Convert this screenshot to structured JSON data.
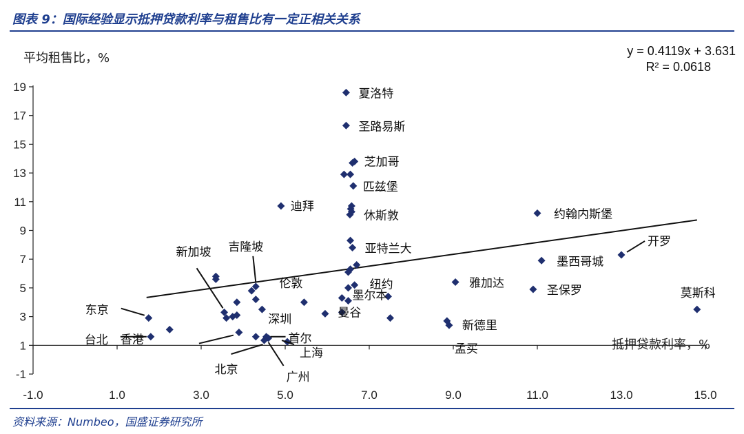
{
  "header": {
    "title": "图表 9：国际经验显示抵押贷款利率与租售比有一定正相关关系"
  },
  "footer": {
    "source": "资料来源：Numbeo，国盛证券研究所"
  },
  "chart_data": {
    "type": "scatter",
    "ylabel": "平均租售比，%",
    "xlabel": "抵押贷款利率，%",
    "xlim": [
      -1.0,
      15.0
    ],
    "ylim": [
      -1,
      19
    ],
    "x_ticks": [
      "-1.0",
      "1.0",
      "3.0",
      "5.0",
      "7.0",
      "9.0",
      "11.0",
      "13.0",
      "15.0"
    ],
    "y_ticks": [
      "-1",
      "1",
      "3",
      "5",
      "7",
      "9",
      "11",
      "13",
      "15",
      "17",
      "19"
    ],
    "marker_color": "#1f2f6f",
    "trendline": {
      "equation": "y = 0.4119x + 3.631",
      "r2": "R² = 0.0618",
      "slope": 0.4119,
      "intercept": 3.631,
      "x_range": [
        1.7,
        14.8
      ]
    },
    "points": [
      {
        "x": 6.45,
        "y": 18.6,
        "label": "夏洛特"
      },
      {
        "x": 6.45,
        "y": 16.3,
        "label": "圣路易斯"
      },
      {
        "x": 6.65,
        "y": 13.8,
        "label": "芝加哥"
      },
      {
        "x": 6.6,
        "y": 13.7
      },
      {
        "x": 6.4,
        "y": 12.9
      },
      {
        "x": 6.55,
        "y": 12.9
      },
      {
        "x": 6.62,
        "y": 12.1,
        "label": "匹兹堡"
      },
      {
        "x": 4.9,
        "y": 10.7,
        "label": "迪拜"
      },
      {
        "x": 6.58,
        "y": 10.7
      },
      {
        "x": 6.56,
        "y": 10.5
      },
      {
        "x": 6.58,
        "y": 10.3
      },
      {
        "x": 6.54,
        "y": 10.1,
        "label": "休斯敦"
      },
      {
        "x": 11.0,
        "y": 10.2,
        "label": "约翰内斯堡"
      },
      {
        "x": 6.55,
        "y": 8.3
      },
      {
        "x": 6.6,
        "y": 7.8,
        "label": "亚特兰大"
      },
      {
        "x": 13.0,
        "y": 7.3,
        "label": "开罗"
      },
      {
        "x": 11.1,
        "y": 6.9,
        "label": "墨西哥城"
      },
      {
        "x": 6.7,
        "y": 6.6
      },
      {
        "x": 6.55,
        "y": 6.3
      },
      {
        "x": 6.5,
        "y": 6.1
      },
      {
        "x": 9.05,
        "y": 5.4,
        "label": "雅加达"
      },
      {
        "x": 10.9,
        "y": 4.9,
        "label": "圣保罗"
      },
      {
        "x": 6.65,
        "y": 5.2,
        "label": "纽约"
      },
      {
        "x": 6.5,
        "y": 5.0
      },
      {
        "x": 3.35,
        "y": 5.8
      },
      {
        "x": 3.35,
        "y": 5.6
      },
      {
        "x": 4.3,
        "y": 5.1,
        "label": "吉隆坡"
      },
      {
        "x": 4.2,
        "y": 4.8
      },
      {
        "x": 4.3,
        "y": 4.2
      },
      {
        "x": 5.45,
        "y": 4.0,
        "label": "伦敦"
      },
      {
        "x": 3.85,
        "y": 4.0
      },
      {
        "x": 4.45,
        "y": 3.5
      },
      {
        "x": 6.35,
        "y": 4.3
      },
      {
        "x": 6.5,
        "y": 4.1
      },
      {
        "x": 7.45,
        "y": 4.4,
        "label": "墨尔本"
      },
      {
        "x": 3.55,
        "y": 3.3,
        "label": "新加坡"
      },
      {
        "x": 3.75,
        "y": 3.0
      },
      {
        "x": 3.85,
        "y": 3.1
      },
      {
        "x": 3.6,
        "y": 2.9
      },
      {
        "x": 5.95,
        "y": 3.2
      },
      {
        "x": 6.35,
        "y": 3.3,
        "label": "曼谷"
      },
      {
        "x": 7.5,
        "y": 2.9
      },
      {
        "x": 1.75,
        "y": 2.9,
        "label": "东京"
      },
      {
        "x": 2.25,
        "y": 2.1
      },
      {
        "x": 8.85,
        "y": 2.7,
        "label": "新德里"
      },
      {
        "x": 8.9,
        "y": 2.4,
        "label": "孟买"
      },
      {
        "x": 14.8,
        "y": 3.5,
        "label": "莫斯科"
      },
      {
        "x": 1.8,
        "y": 1.6,
        "label": "台北"
      },
      {
        "x": 3.9,
        "y": 1.9,
        "label": "香港"
      },
      {
        "x": 4.3,
        "y": 1.6,
        "label": "深圳"
      },
      {
        "x": 4.5,
        "y": 1.35,
        "label": "北京"
      },
      {
        "x": 4.6,
        "y": 1.5,
        "label": "广州"
      },
      {
        "x": 5.05,
        "y": 1.25,
        "label": "上海"
      },
      {
        "x": 4.55,
        "y": 1.6,
        "label": "首尔"
      }
    ]
  }
}
